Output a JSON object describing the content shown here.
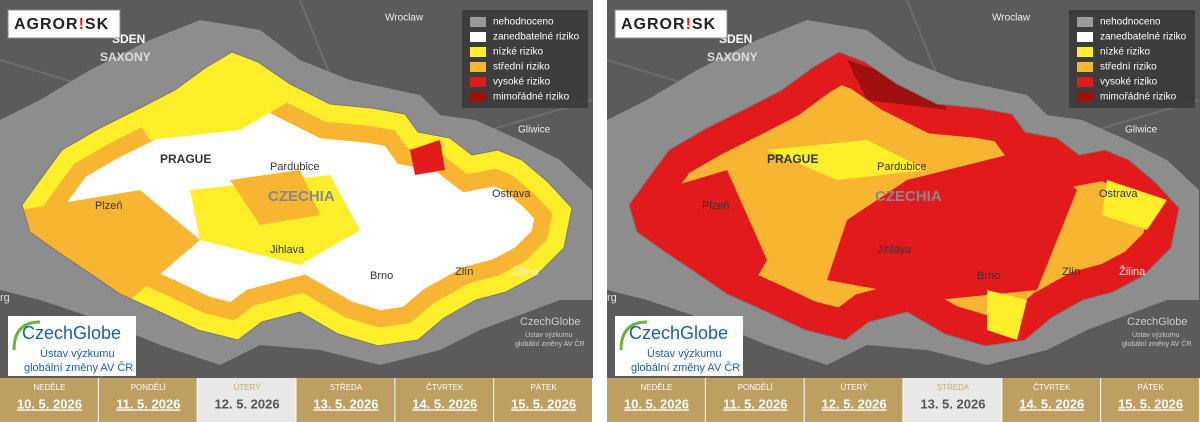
{
  "panels": [
    {
      "logo": {
        "part1": "AGROR",
        "part2": "!",
        "part3": "SK"
      },
      "legend": [
        {
          "label": "nehodnoceno",
          "color": "#9a9a9a"
        },
        {
          "label": "zanedbatelné riziko",
          "color": "#ffffff"
        },
        {
          "label": "nízké riziko",
          "color": "#ffef2a"
        },
        {
          "label": "střední riziko",
          "color": "#f7b532"
        },
        {
          "label": "vysoké riziko",
          "color": "#e31a1c"
        },
        {
          "label": "mimořádné riziko",
          "color": "#a0100f"
        }
      ],
      "places": [
        "SDEN",
        "SAXONY",
        "Wroclaw",
        "Gliwice",
        "PRAGUE",
        "Pardubice",
        "CZECHIA",
        "Plzeň",
        "Jihlava",
        "Ostrava",
        "Brno",
        "Zlín",
        "Žilina",
        "rg"
      ],
      "logo_box": {
        "name": "CzechGlobe",
        "line1": "Ústav výzkumu",
        "line2": "globální změny AV ČR"
      },
      "watermark": {
        "name": "CzechGlobe",
        "line1": "Ústav výzkumu",
        "line2": "globální změny AV ČR"
      },
      "days": [
        {
          "weekday": "NEDĚLE",
          "date": "10. 5. 2026"
        },
        {
          "weekday": "PONDĚLÍ",
          "date": "11. 5. 2026"
        },
        {
          "weekday": "ÚTERÝ",
          "date": "12. 5. 2026",
          "selected": true
        },
        {
          "weekday": "STŘEDA",
          "date": "13. 5. 2026"
        },
        {
          "weekday": "ČTVRTEK",
          "date": "14. 5. 2026"
        },
        {
          "weekday": "PÁTEK",
          "date": "15. 5. 2026"
        }
      ]
    },
    {
      "logo": {
        "part1": "AGROR",
        "part2": "!",
        "part3": "SK"
      },
      "legend": [
        {
          "label": "nehodnoceno",
          "color": "#9a9a9a"
        },
        {
          "label": "zanedbatelné riziko",
          "color": "#ffffff"
        },
        {
          "label": "nízké riziko",
          "color": "#ffef2a"
        },
        {
          "label": "střední riziko",
          "color": "#f7b532"
        },
        {
          "label": "vysoké riziko",
          "color": "#e31a1c"
        },
        {
          "label": "mimořádné riziko",
          "color": "#a0100f"
        }
      ],
      "places": [
        "SDEN",
        "SAXONY",
        "Wroclaw",
        "Gliwice",
        "PRAGUE",
        "Pardubice",
        "CZECHIA",
        "Plzeň",
        "Jihlava",
        "Ostrava",
        "Brno",
        "Zlín",
        "Žilina",
        "rg"
      ],
      "logo_box": {
        "name": "CzechGlobe",
        "line1": "Ústav výzkumu",
        "line2": "globální změny AV ČR"
      },
      "watermark": {
        "name": "CzechGlobe",
        "line1": "Ústav výzkumu",
        "line2": "globální změny AV ČR"
      },
      "days": [
        {
          "weekday": "NEDĚLE",
          "date": "10. 5. 2026"
        },
        {
          "weekday": "PONDĚLÍ",
          "date": "11. 5. 2026"
        },
        {
          "weekday": "ÚTERÝ",
          "date": "12. 5. 2026"
        },
        {
          "weekday": "STŘEDA",
          "date": "13. 5. 2026",
          "selected": true
        },
        {
          "weekday": "ČTVRTEK",
          "date": "14. 5. 2026"
        },
        {
          "weekday": "PÁTEK",
          "date": "15. 5. 2026"
        }
      ]
    }
  ]
}
